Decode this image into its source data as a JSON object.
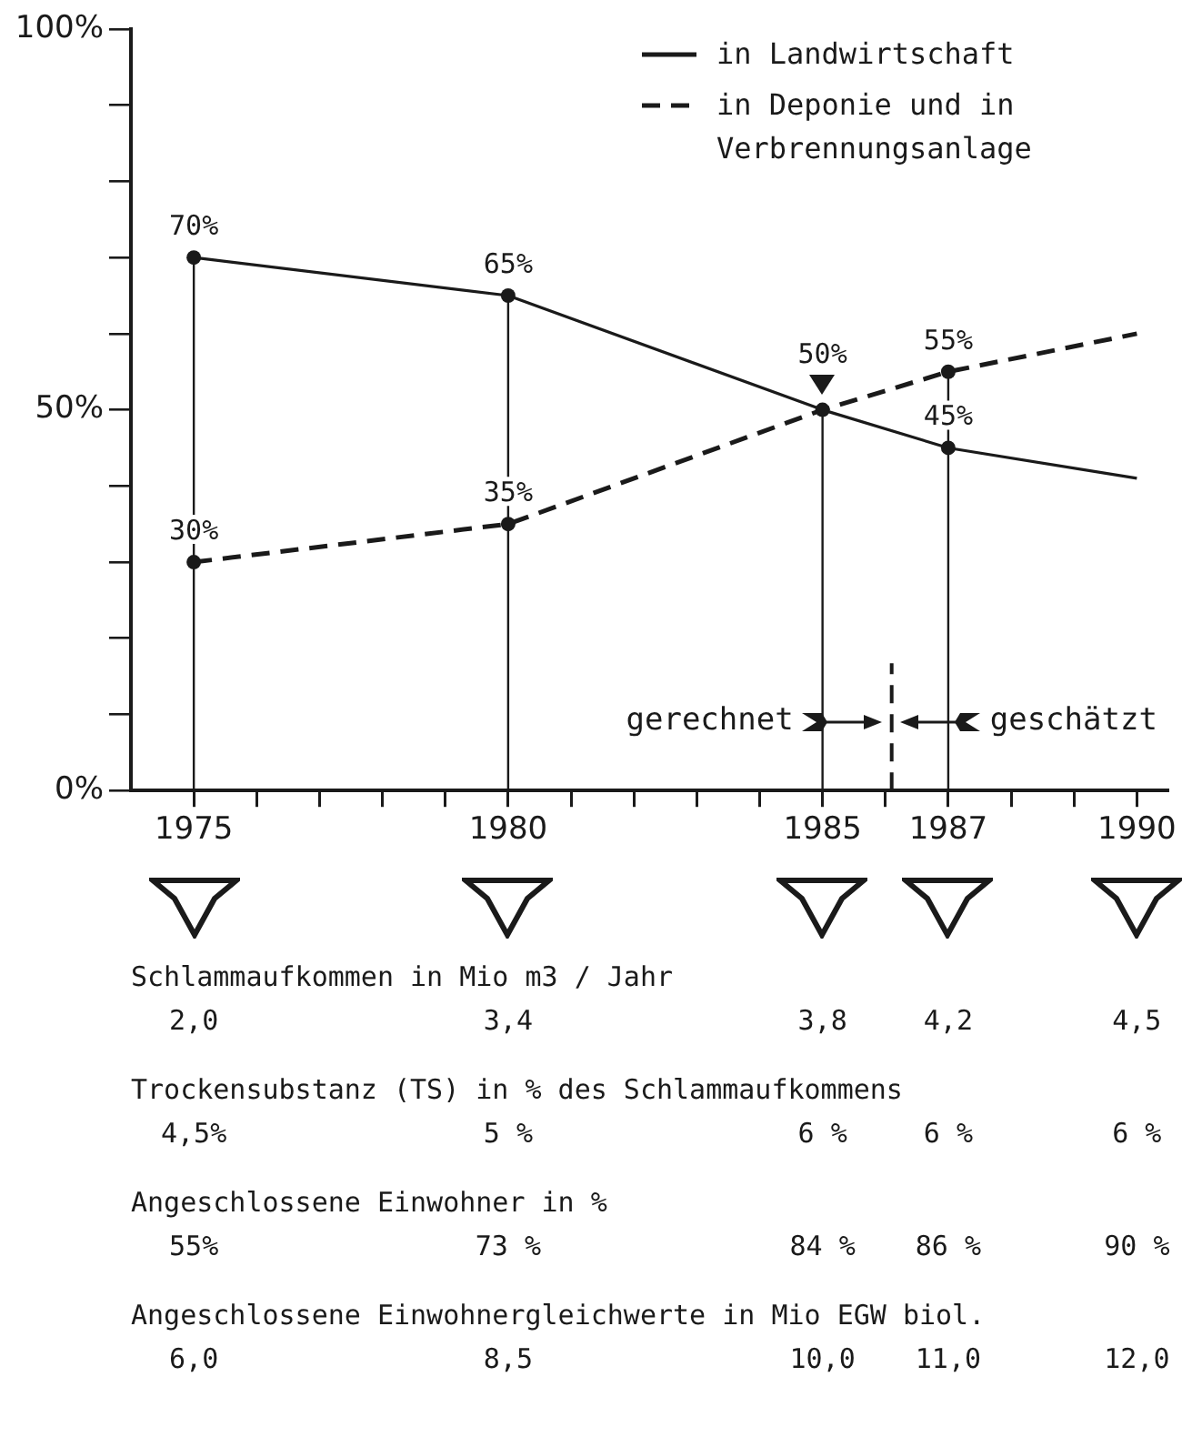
{
  "chart_data": {
    "type": "line",
    "x": [
      1975,
      1980,
      1985,
      1987,
      1990
    ],
    "series": [
      {
        "name": "in Landwirtschaft",
        "color": "#1a1a1a",
        "line_style": "solid",
        "values": [
          70,
          65,
          50,
          45,
          41
        ],
        "value_labels": [
          "70%",
          "65%",
          "50%",
          "45%",
          null
        ]
      },
      {
        "name": "in Deponie und in Verbrennungsanlage",
        "color": "#1a1a1a",
        "line_style": "dashed",
        "values": [
          30,
          35,
          50,
          55,
          60
        ],
        "value_labels": [
          "30%",
          "35%",
          null,
          "55%",
          null
        ]
      }
    ],
    "marker": "circle",
    "legend": "top right",
    "xlim": [
      1974,
      1990.5
    ],
    "xticks": [
      1975,
      {
        "value": 1976,
        "label": null
      },
      {
        "value": 1977,
        "label": null
      },
      {
        "value": 1978,
        "label": null
      },
      {
        "value": 1979,
        "label": null
      },
      1980,
      {
        "value": 1981,
        "label": null
      },
      {
        "value": 1982,
        "label": null
      },
      {
        "value": 1983,
        "label": null
      },
      {
        "value": 1984,
        "label": null
      },
      1985,
      {
        "value": 1986,
        "label": null
      },
      1987,
      {
        "value": 1988,
        "label": null
      },
      {
        "value": 1989,
        "label": null
      },
      1990
    ],
    "ylim": [
      0,
      100
    ],
    "yticks": [
      {
        "value": 0,
        "label": "0%"
      },
      {
        "value": 10,
        "label": null
      },
      {
        "value": 20,
        "label": null
      },
      {
        "value": 30,
        "label": null
      },
      {
        "value": 40,
        "label": null
      },
      {
        "value": 50,
        "label": "50%"
      },
      {
        "value": 60,
        "label": null
      },
      {
        "value": 70,
        "label": null
      },
      {
        "value": 80,
        "label": null
      },
      {
        "value": 90,
        "label": null
      },
      {
        "value": 100,
        "label": "100%"
      }
    ],
    "ref_lines": [
      {
        "axis": "x",
        "value": 1975,
        "color": "#1a1a1a",
        "line_style": "solid"
      },
      {
        "axis": "x",
        "value": 1980,
        "color": "#1a1a1a",
        "line_style": "solid"
      },
      {
        "axis": "x",
        "value": 1985,
        "color": "#1a1a1a",
        "line_style": "solid"
      },
      {
        "axis": "x",
        "value": 1987,
        "color": "#1a1a1a",
        "line_style": "solid"
      },
      {
        "axis": "x",
        "value": 1986.1,
        "color": "#1a1a1a",
        "line_style": "dashed"
      }
    ],
    "annotations": [
      "gerechnet",
      "geschätzt",
      "Schlammaufkommen in Mio m3 / Jahr",
      "2,0",
      "3,4",
      "3,8",
      "4,2",
      "4,5",
      "Trockensubstanz (TS) in % des Schlammaufkommens",
      "4,5%",
      "5 %",
      "6 %",
      "6 %",
      "6 %",
      "Angeschlossene Einwohner in %",
      "55%",
      "73 %",
      "84 %",
      "86 %",
      "90 %",
      "Angeschlossene Einwohnergleichwerte in Mio EGW biol.",
      "6,0",
      "8,5",
      "10,0",
      "11,0",
      "12,0"
    ]
  }
}
